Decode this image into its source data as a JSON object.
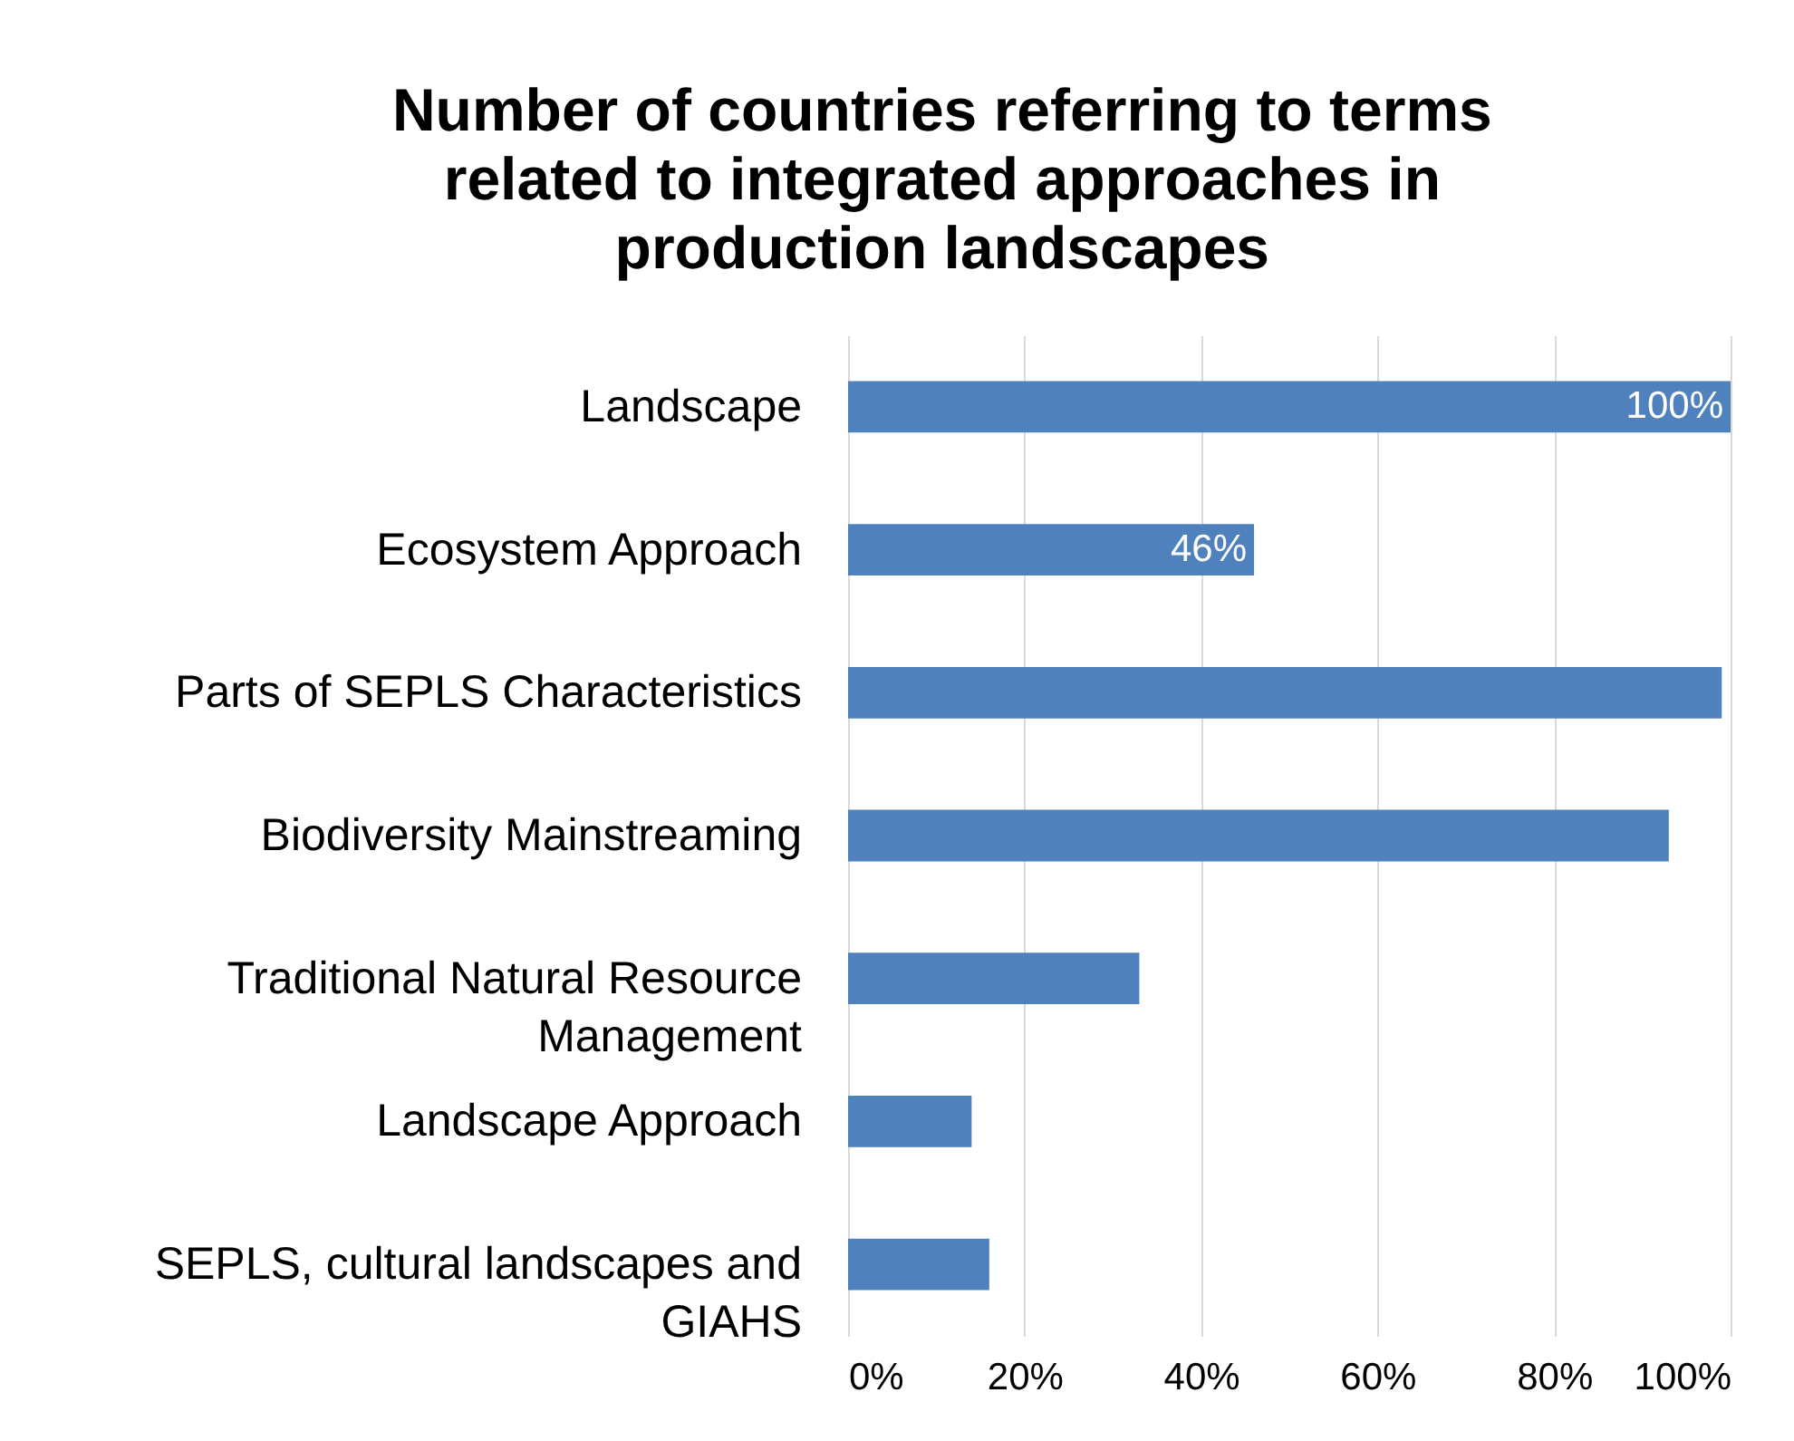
{
  "chart_data": {
    "type": "bar",
    "orientation": "horizontal",
    "title": "Number of countries referring to terms related to integrated approaches in production landscapes",
    "categories": [
      "Landscape",
      "Ecosystem Approach",
      "Parts of SEPLS Characteristics",
      "Biodiversity Mainstreaming",
      "Traditional Natural Resource Management",
      "Landscape Approach",
      "SEPLS, cultural landscapes and GIAHS"
    ],
    "values": [
      100,
      46,
      99,
      93,
      33,
      14,
      16
    ],
    "value_labels": [
      "100%",
      "46%",
      null,
      null,
      null,
      null,
      null
    ],
    "color": "#4f81bd",
    "xlim": [
      0,
      100
    ],
    "xticks": [
      {
        "value": 0,
        "label": "0%"
      },
      {
        "value": 20,
        "label": "20%"
      },
      {
        "value": 40,
        "label": "40%"
      },
      {
        "value": 60,
        "label": "60%"
      },
      {
        "value": 80,
        "label": "80%"
      },
      {
        "value": 100,
        "label": "100%"
      }
    ],
    "grid": "x"
  }
}
